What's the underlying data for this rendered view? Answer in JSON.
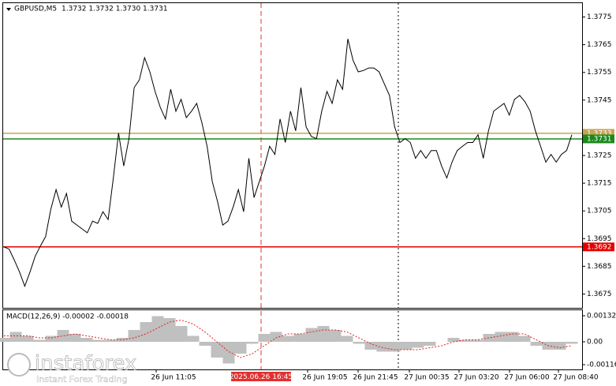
{
  "chart_data": [
    {
      "type": "line",
      "title": "GBPUSD,M5",
      "ohlc_label": "1.3732 1.3732 1.3730 1.3731",
      "color": "#000000",
      "values": [
        1.3692,
        1.36912,
        1.36872,
        1.36829,
        1.36778,
        1.36829,
        1.36886,
        1.36923,
        1.36957,
        1.37056,
        1.37127,
        1.37064,
        1.37113,
        1.37013,
        1.36999,
        1.36985,
        1.36971,
        1.37013,
        1.37005,
        1.37047,
        1.37019,
        1.37169,
        1.37331,
        1.37212,
        1.37311,
        1.37495,
        1.37523,
        1.37603,
        1.37552,
        1.37481,
        1.37424,
        1.37382,
        1.37489,
        1.3741,
        1.37453,
        1.37387,
        1.3741,
        1.37438,
        1.37368,
        1.37283,
        1.37155,
        1.37084,
        1.36999,
        1.37013,
        1.37064,
        1.37127,
        1.37047,
        1.3724,
        1.37098,
        1.37155,
        1.37212,
        1.37283,
        1.37254,
        1.37382,
        1.37297,
        1.3741,
        1.37339,
        1.37495,
        1.37353,
        1.37319,
        1.37311,
        1.3741,
        1.37481,
        1.37438,
        1.37523,
        1.37489,
        1.37671,
        1.37594,
        1.37552,
        1.37557,
        1.37566,
        1.37566,
        1.37552,
        1.37509,
        1.37467,
        1.37353,
        1.37297,
        1.37311,
        1.37297,
        1.3724,
        1.37268,
        1.3724,
        1.37268,
        1.37268,
        1.37212,
        1.37169,
        1.37226,
        1.37268,
        1.37283,
        1.37297,
        1.37297,
        1.37325,
        1.3724,
        1.37339,
        1.3741,
        1.37424,
        1.37438,
        1.37396,
        1.37453,
        1.37467,
        1.37444,
        1.3741,
        1.37339,
        1.37283,
        1.37226,
        1.37254,
        1.37226,
        1.37254,
        1.37268,
        1.37325
      ],
      "ylim": [
        1.367,
        1.378
      ],
      "yticks": [
        1.3775,
        1.3765,
        1.3755,
        1.3745,
        1.3725,
        1.3715,
        1.3705,
        1.3695,
        1.3685,
        1.3675
      ],
      "levels": [
        {
          "value": 1.3733,
          "color": "#c8a452"
        },
        {
          "value": 1.3731,
          "color": "#1a8a1a"
        },
        {
          "value": 1.3692,
          "color": "#e60000"
        }
      ],
      "x_labels": [
        "26 Jun 11:05",
        "26 Jun 19:05",
        "26 Jun 21:45",
        "27 Jun 00:35",
        "27 Jun 03:20",
        "27 Jun 06:00",
        "27 Jun 08:40"
      ],
      "crosshair_label": "2025.06.26 16:45"
    },
    {
      "type": "macd",
      "title": "MACD(12,26,9) -0.00002 -0.00018",
      "series": [
        {
          "type": "bar",
          "color": "#c0c0c0",
          "values": [
            0.0002,
            0.0005,
            0.0003,
            0.0001,
            0.0003,
            0.0006,
            0.0004,
            0.0002,
            0.0001,
            0.0001,
            0.0002,
            0.0006,
            0.001,
            0.0013,
            0.0012,
            0.0008,
            0.0003,
            -0.0002,
            -0.0008,
            -0.0011,
            -0.0006,
            -0.0001,
            0.0004,
            0.0005,
            0.0003,
            0.0004,
            0.0007,
            0.0008,
            0.0006,
            0.0003,
            -0.0001,
            -0.0004,
            -0.0005,
            -0.0005,
            -0.0004,
            -0.0003,
            -0.0002,
            0,
            0.0002,
            0.0001,
            0.0001,
            0.0004,
            0.0005,
            0.0005,
            0.0003,
            -0.0002,
            -0.0004,
            -0.0004,
            -0.0001
          ]
        },
        {
          "type": "line",
          "color": "#e02020",
          "values": [
            0.0003,
            0.0003,
            0.0003,
            0.0002,
            0.0002,
            0.0003,
            0.0004,
            0.0003,
            0.0002,
            0.0001,
            0.0001,
            0.0002,
            0.0004,
            0.0007,
            0.001,
            0.0011,
            0.0009,
            0.0005,
            0,
            -0.0005,
            -0.0008,
            -0.0006,
            -0.0002,
            0.0002,
            0.0004,
            0.0004,
            0.0005,
            0.0006,
            0.0006,
            0.0005,
            0.0002,
            -0.0001,
            -0.0003,
            -0.0004,
            -0.0004,
            -0.0004,
            -0.0003,
            -0.0002,
            0,
            0.0001,
            0.0001,
            0.0002,
            0.0003,
            0.0004,
            0.0004,
            0.0001,
            -0.0002,
            -0.0003,
            -0.0002
          ]
        }
      ],
      "ylim": [
        -0.0014,
        0.0016
      ],
      "yticks": [
        0.00132,
        {
          "value": 0,
          "label": "0.00"
        },
        -0.00116
      ]
    }
  ],
  "watermark": {
    "brand": "instaforex",
    "tagline": "Instant Forex Trading"
  }
}
